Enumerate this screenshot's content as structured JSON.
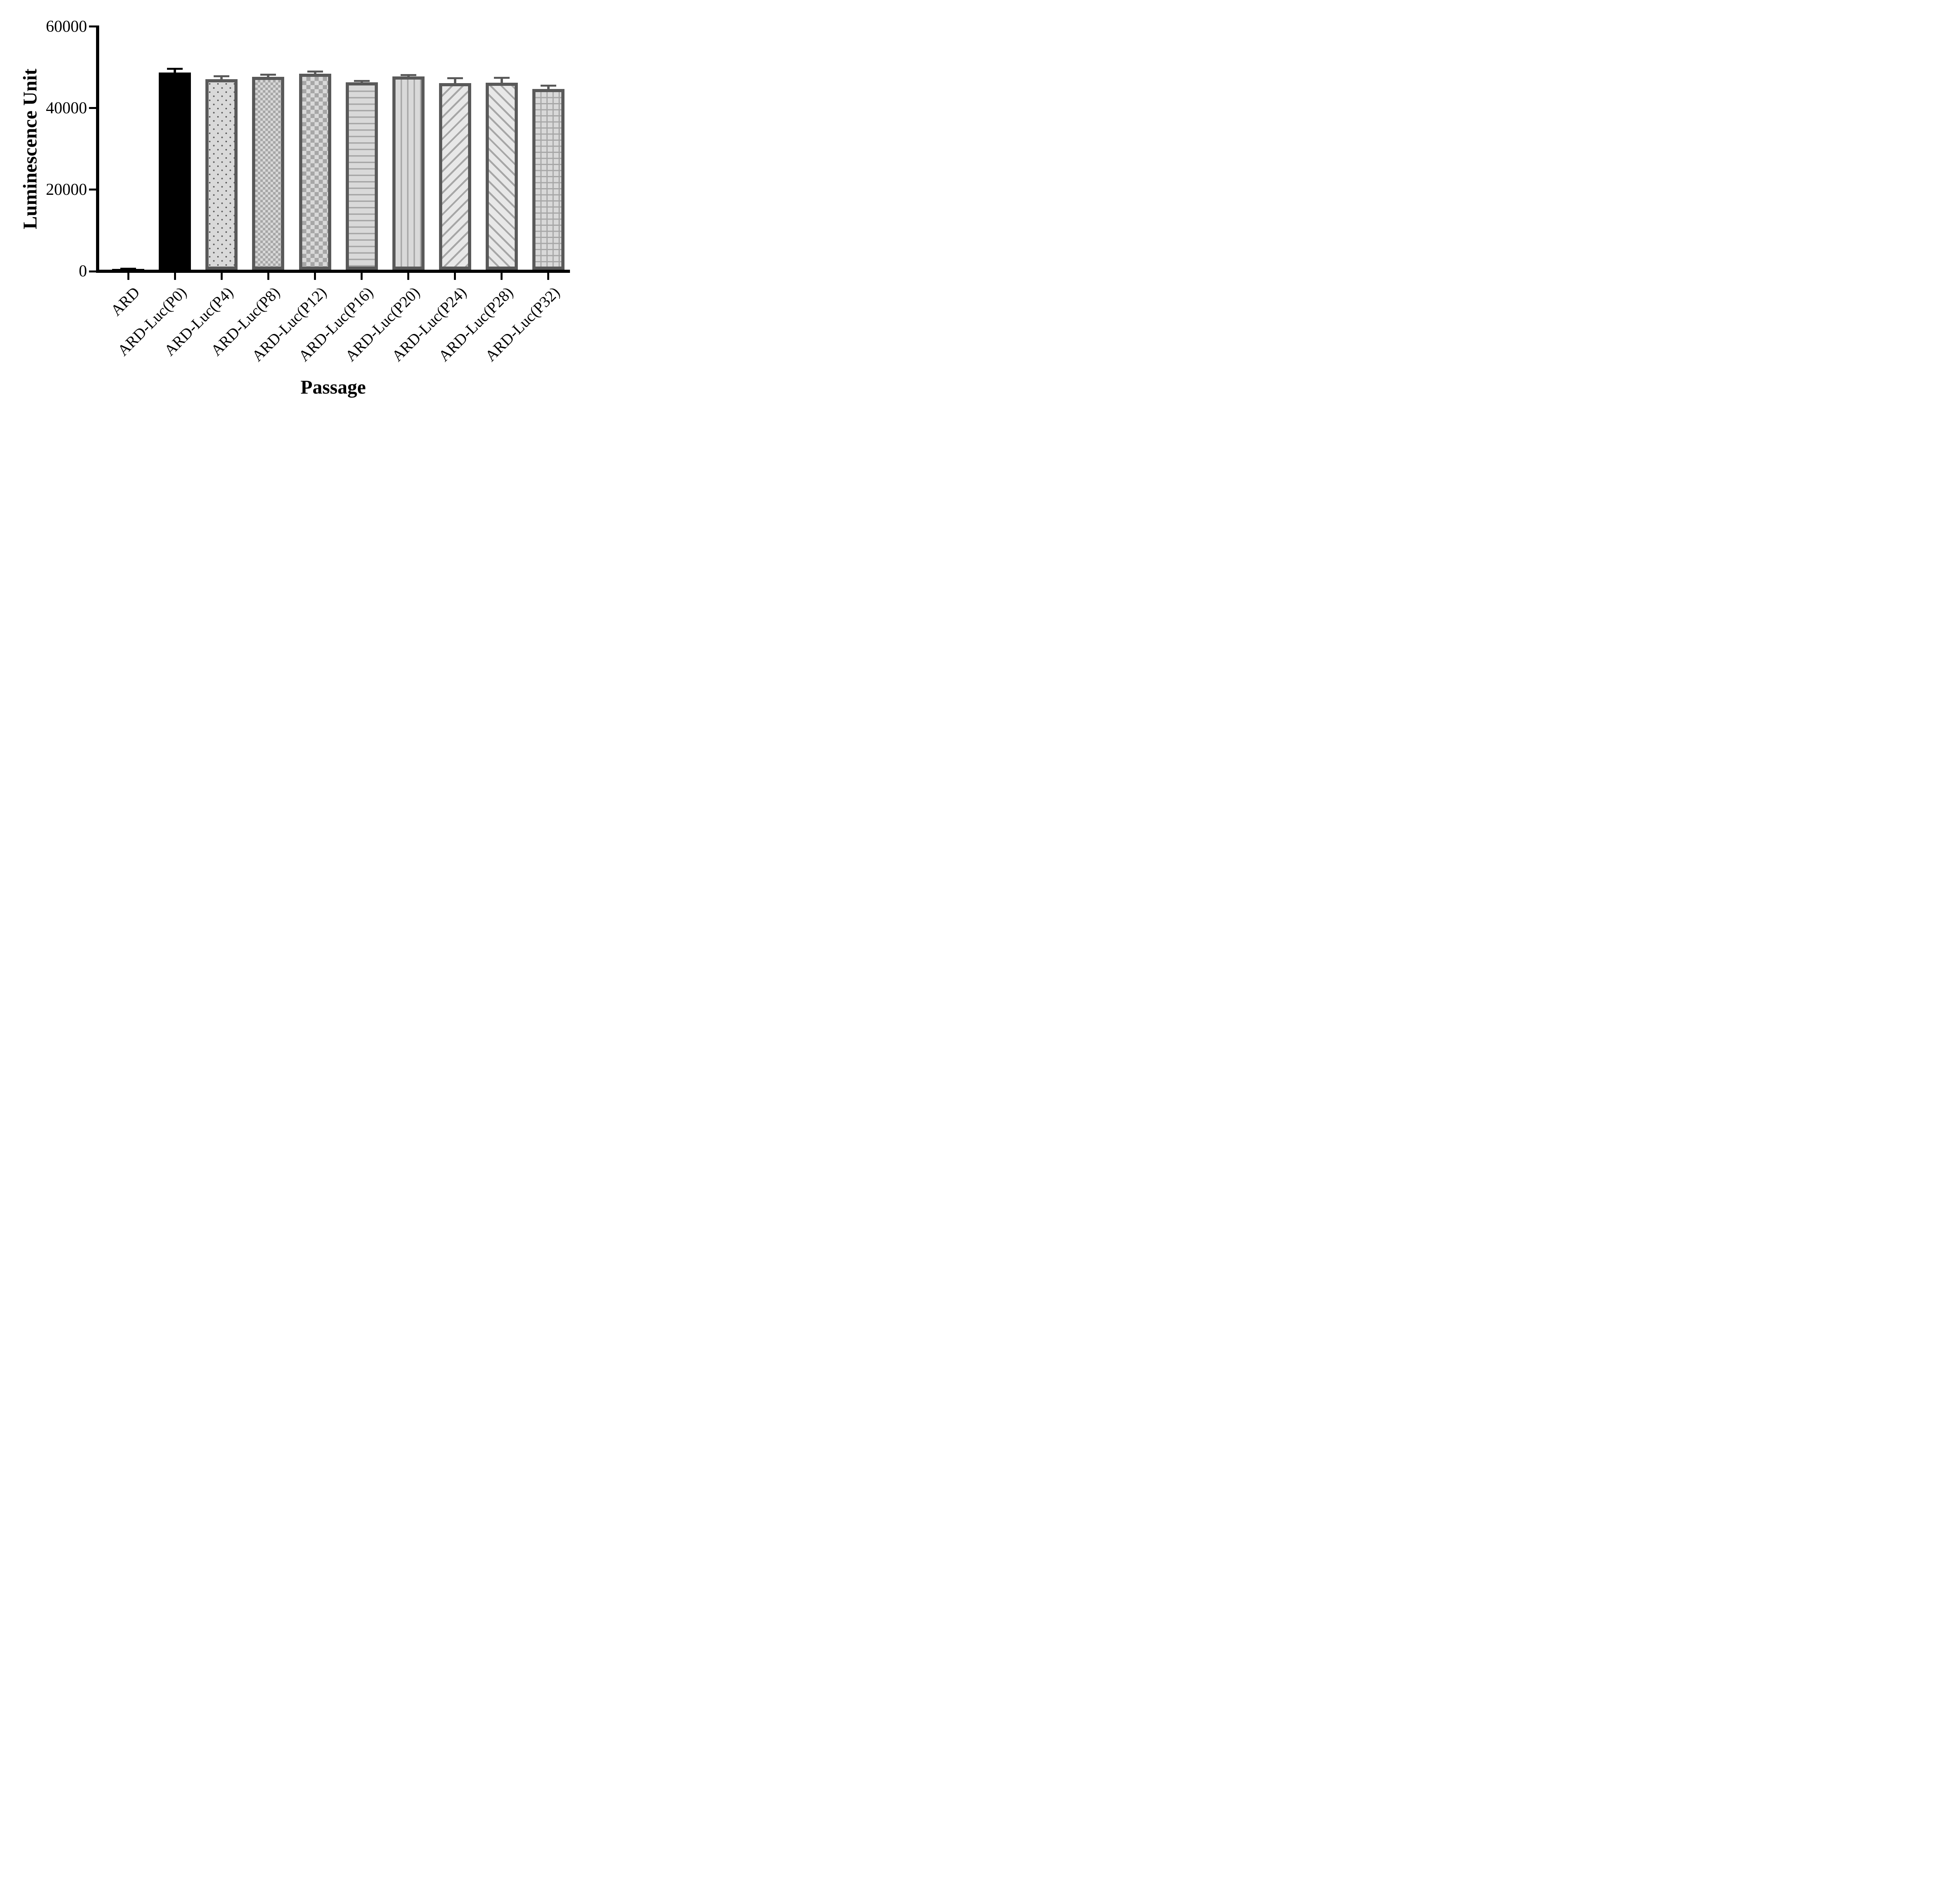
{
  "chart_data": {
    "type": "bar",
    "title": "",
    "xlabel": "Passage",
    "ylabel": "Luminescence Unit",
    "ylim": [
      0,
      60000
    ],
    "yticks": [
      0,
      20000,
      40000,
      60000
    ],
    "ytick_labels": [
      "0",
      "20000",
      "40000",
      "60000"
    ],
    "grid": "off",
    "legend": "none",
    "categories": [
      "ARD",
      "ARD-Luc(P0)",
      "ARD-Luc(P4)",
      "ARD-Luc(P8)",
      "ARD-Luc(P12)",
      "ARD-Luc(P16)",
      "ARD-Luc(P20)",
      "ARD-Luc(P24)",
      "ARD-Luc(P28)",
      "ARD-Luc(P32)"
    ],
    "values": [
      450,
      48700,
      47100,
      47650,
      48450,
      46350,
      47800,
      46150,
      46250,
      44650
    ],
    "errors": [
      150,
      950,
      700,
      500,
      520,
      280,
      330,
      1170,
      1170,
      840
    ],
    "error_direction": "plus",
    "patterns": [
      "solid-black",
      "solid-black",
      "dots",
      "checker-small",
      "checker-large",
      "hlines",
      "vlines",
      "diag-up",
      "diag-down",
      "grid"
    ],
    "colors": {
      "black": "#000000",
      "bar_border": "#595959",
      "bar_fill_light": "#d9d9d9",
      "pattern_dark": "#a6a6a6"
    }
  }
}
